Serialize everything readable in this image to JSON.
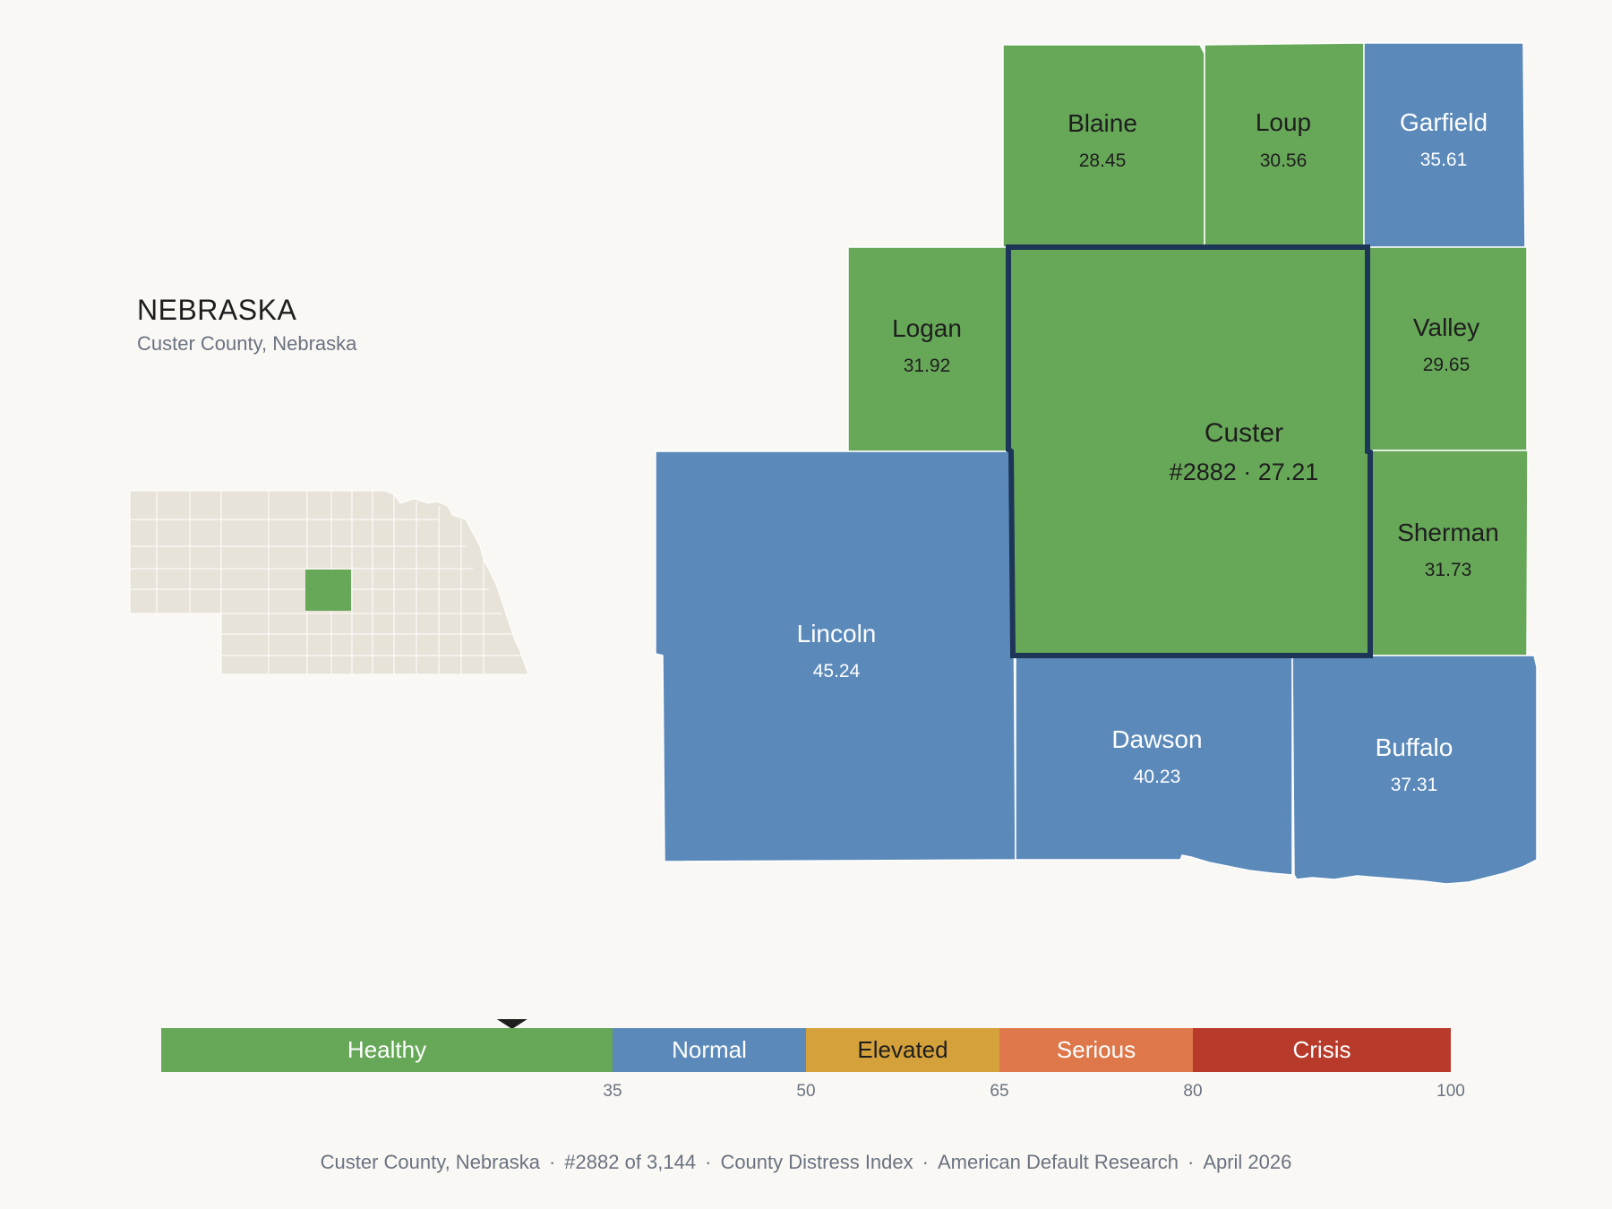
{
  "header": {
    "state": "NEBRASKA",
    "subtitle": "Custer County, Nebraska"
  },
  "colors": {
    "healthy": "#67a758",
    "normal": "#5b8aba",
    "elevated": "#d4a13b",
    "serious": "#de774a",
    "crisis": "#b83a2b",
    "highlight_border": "#1d3557",
    "locator_fill": "#e8e3d9",
    "background": "#f9f8f5"
  },
  "map": {
    "focus": {
      "name": "Custer",
      "label": "#2882 · 27.21",
      "rank": 2882,
      "score": 27.21,
      "status": "healthy"
    },
    "neighbors": [
      {
        "name": "Blaine",
        "score": "28.45",
        "status": "healthy"
      },
      {
        "name": "Loup",
        "score": "30.56",
        "status": "healthy"
      },
      {
        "name": "Garfield",
        "score": "35.61",
        "status": "normal"
      },
      {
        "name": "Logan",
        "score": "31.92",
        "status": "healthy"
      },
      {
        "name": "Valley",
        "score": "29.65",
        "status": "healthy"
      },
      {
        "name": "Sherman",
        "score": "31.73",
        "status": "healthy"
      },
      {
        "name": "Lincoln",
        "score": "45.24",
        "status": "normal"
      },
      {
        "name": "Dawson",
        "score": "40.23",
        "status": "normal"
      },
      {
        "name": "Buffalo",
        "score": "37.31",
        "status": "normal"
      }
    ]
  },
  "legend": {
    "marker_value": 27.21,
    "range": [
      0,
      100
    ],
    "bands": [
      {
        "label": "Healthy",
        "from": 0,
        "to": 35,
        "color": "#67a758",
        "text_color": "#ffffff"
      },
      {
        "label": "Normal",
        "from": 35,
        "to": 50,
        "color": "#5b8aba",
        "text_color": "#ffffff"
      },
      {
        "label": "Elevated",
        "from": 50,
        "to": 65,
        "color": "#d4a13b",
        "text_color": "#1e1e1e"
      },
      {
        "label": "Serious",
        "from": 65,
        "to": 80,
        "color": "#de774a",
        "text_color": "#ffffff"
      },
      {
        "label": "Crisis",
        "from": 80,
        "to": 100,
        "color": "#b83a2b",
        "text_color": "#ffffff"
      }
    ],
    "ticks": [
      "35",
      "50",
      "65",
      "80",
      "100"
    ]
  },
  "footer": {
    "county": "Custer County, Nebraska",
    "rank": "#2882 of 3,144",
    "index": "County Distress Index",
    "source": "American Default Research",
    "date": "April 2026"
  }
}
